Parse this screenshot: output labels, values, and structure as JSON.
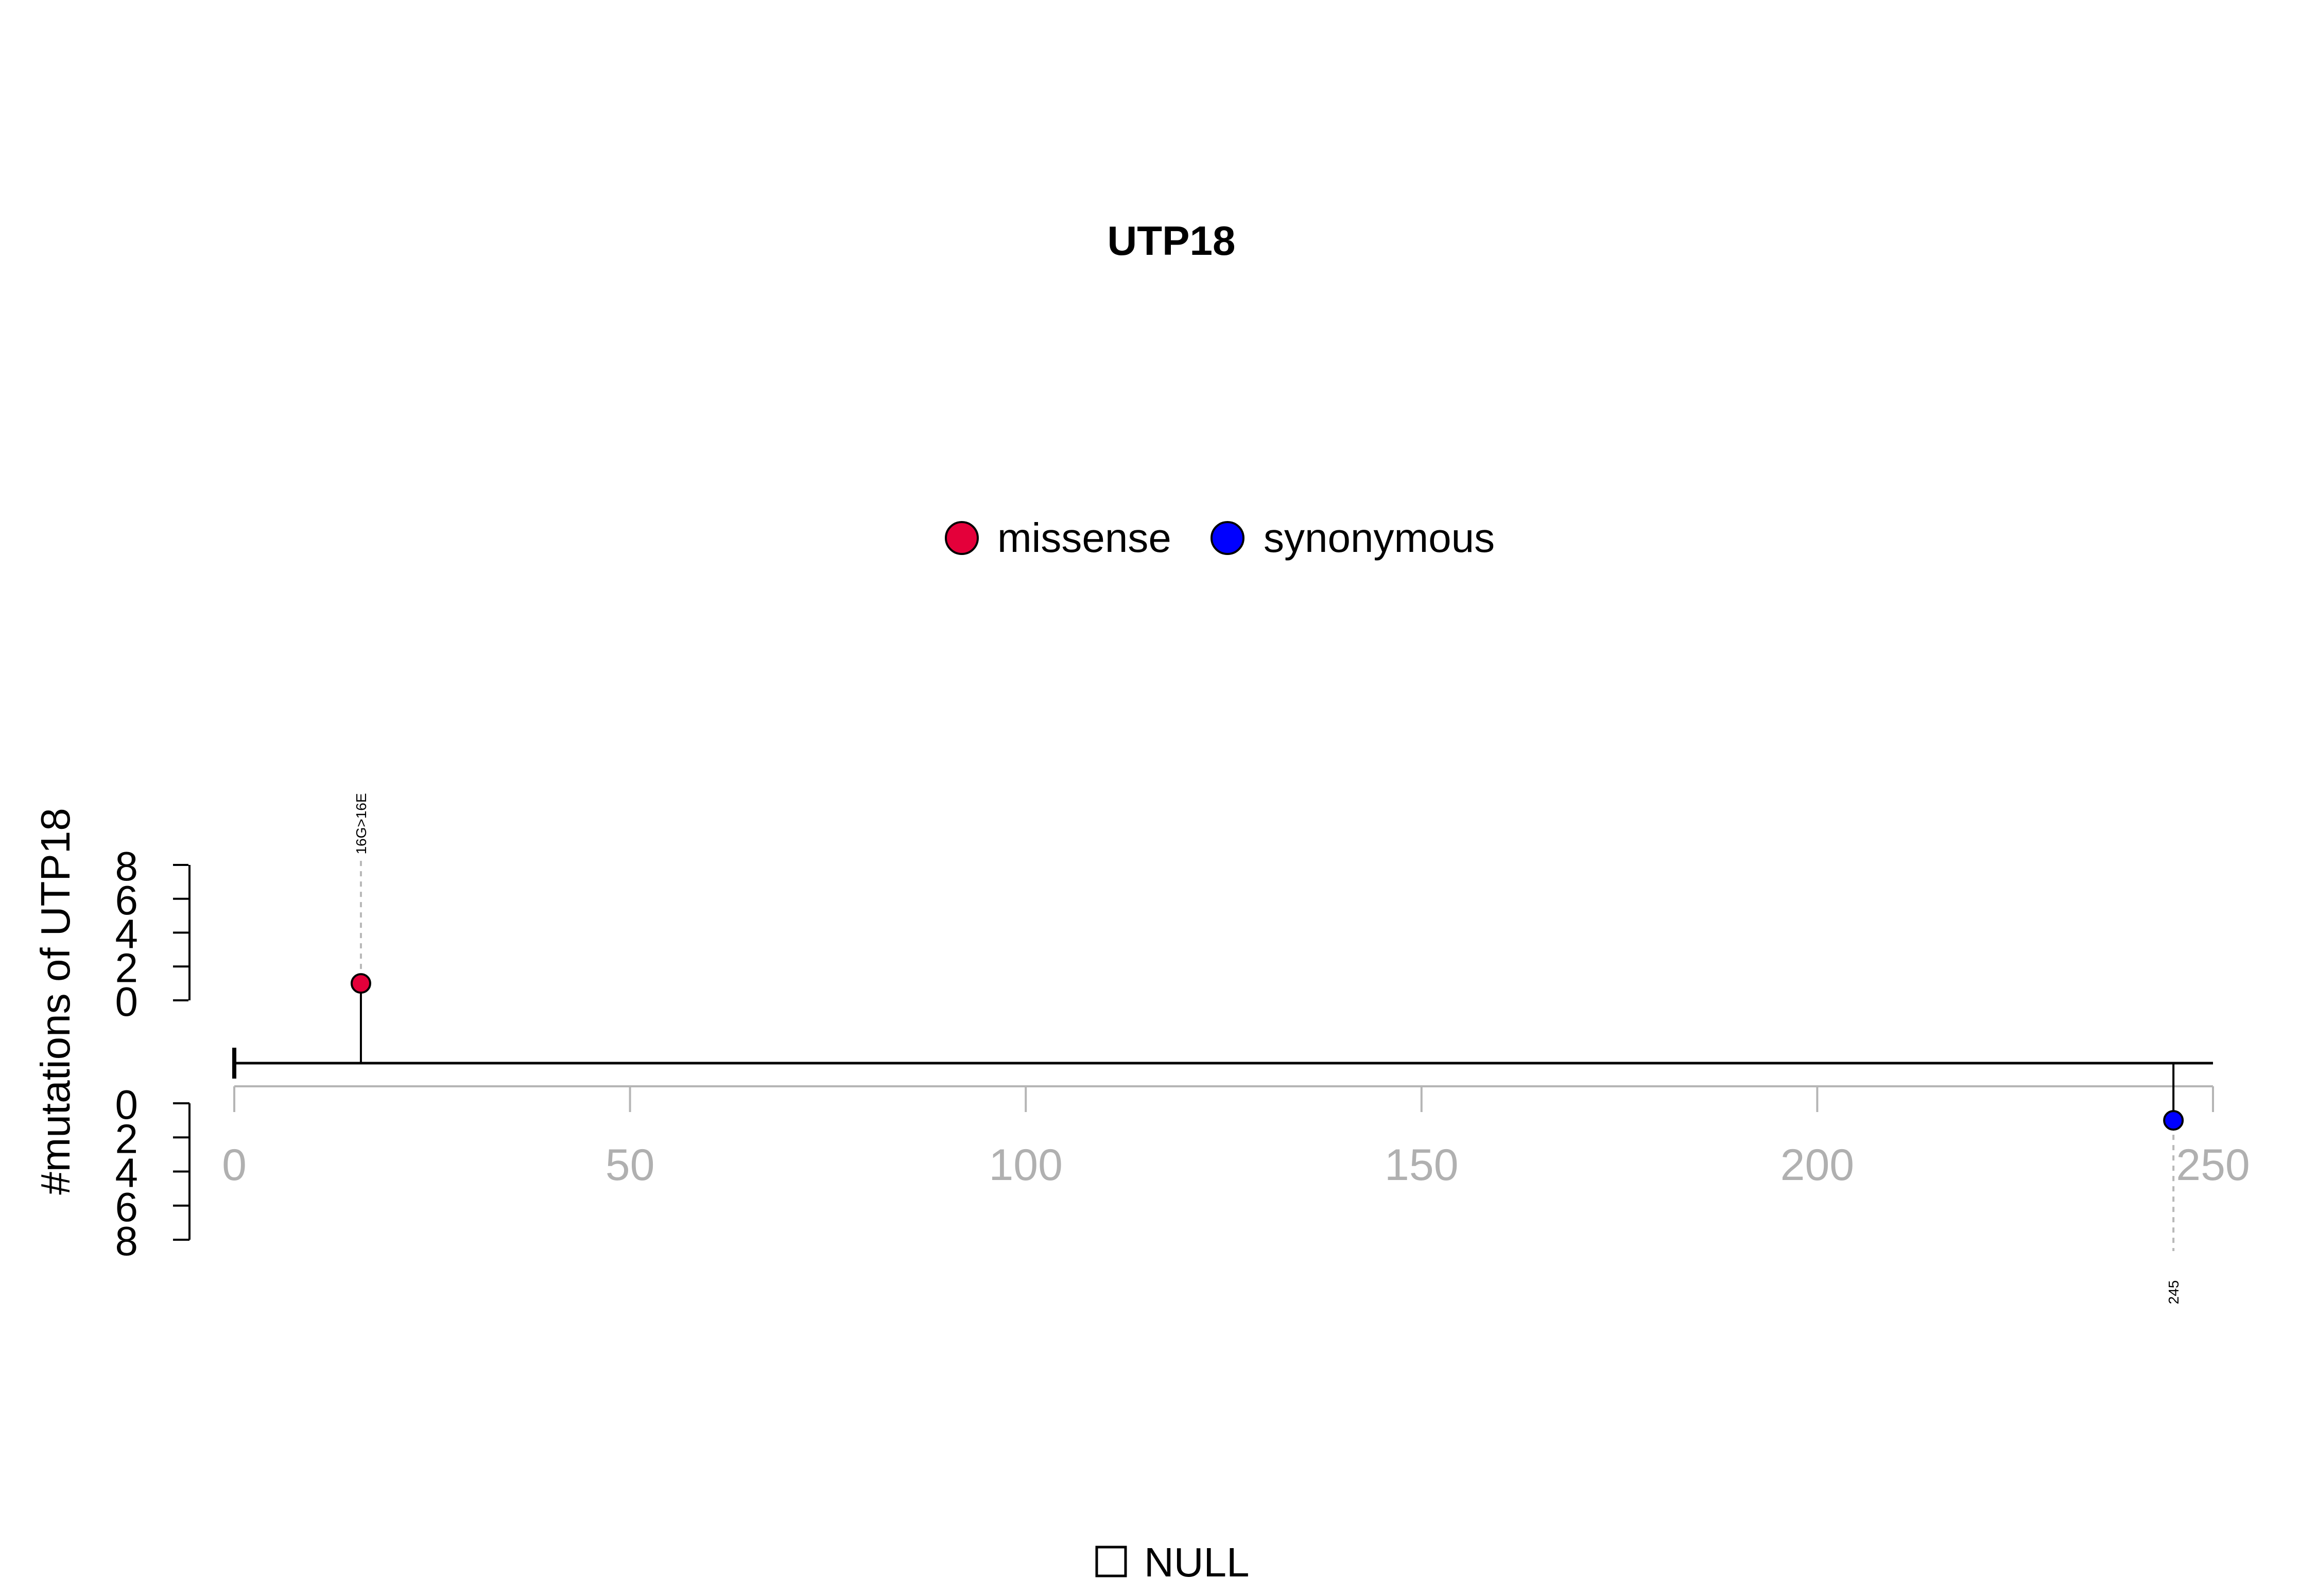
{
  "chart_data": {
    "type": "lollipop",
    "title": "UTP18",
    "ylabel": "#mutations of UTP18",
    "xlim": [
      0,
      250
    ],
    "x_ticks": [
      "0",
      "50",
      "100",
      "150",
      "200",
      "250"
    ],
    "y_ticks_top": [
      "8",
      "6",
      "4",
      "2",
      "0"
    ],
    "y_ticks_bottom": [
      "0",
      "2",
      "4",
      "6",
      "8"
    ],
    "ylim": [
      0,
      8
    ],
    "protein_length": 250,
    "legend": {
      "placement": "top-center",
      "entries": [
        {
          "name": "missense",
          "color": "#e4003a"
        },
        {
          "name": "synonymous",
          "color": "#0000ff"
        }
      ]
    },
    "mutations": [
      {
        "position": 16,
        "count": 1,
        "type": "missense",
        "label": "16G>16E",
        "side": "top",
        "color": "#e4003a"
      },
      {
        "position": 245,
        "count": 1,
        "type": "synonymous",
        "label": "245",
        "side": "bottom",
        "color": "#0000ff"
      }
    ],
    "domain_legend": {
      "label": "NULL"
    }
  }
}
